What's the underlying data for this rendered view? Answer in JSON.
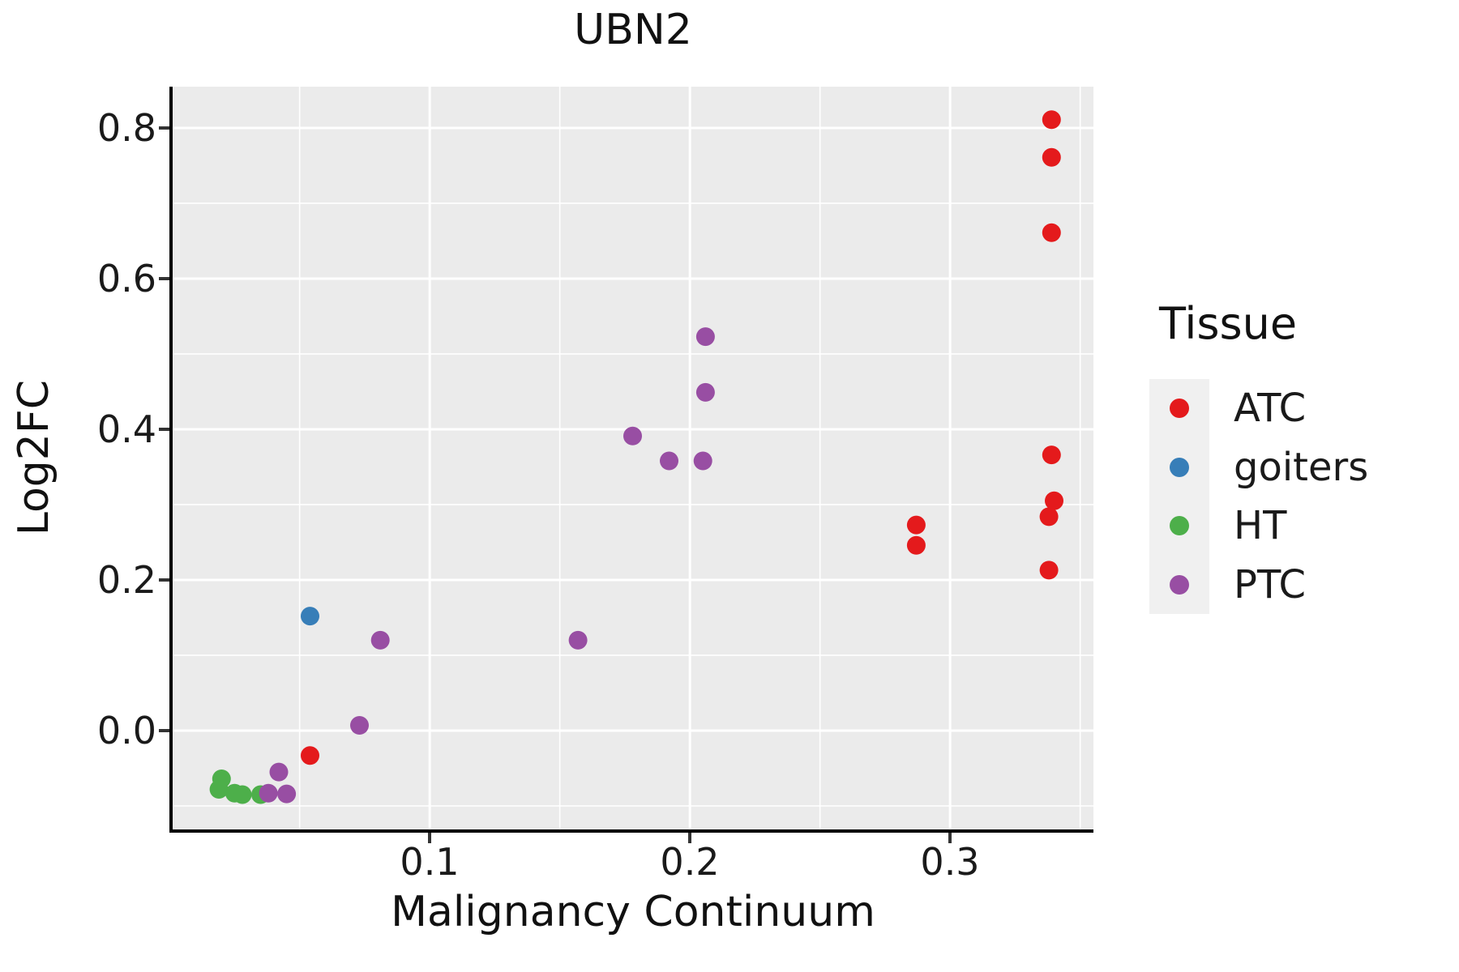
{
  "title": "UBN2",
  "style": {
    "panel_bg": "#EBEBEB",
    "grid_color": "#FFFFFF",
    "axis_color": "#000000",
    "tick_color": "#333333",
    "text_color": "#1a1a1a",
    "legend_key_bg": "#F0F0F0",
    "point_radius": 11.5,
    "legend_dot_radius": 12
  },
  "legend": {
    "title": "Tissue"
  },
  "chart_data": {
    "type": "scatter",
    "title": "UBN2",
    "xlabel": "Malignancy Continuum",
    "ylabel": "Log2FC",
    "grid": true,
    "legend_position": "right",
    "legend_title": "Tissue",
    "axes": {
      "x": {
        "domain": [
          0.0012,
          0.3551
        ],
        "major_ticks": [
          0.1,
          0.2,
          0.3
        ],
        "major_tick_labels": [
          "0.1",
          "0.2",
          "0.3"
        ],
        "minor_ticks": [
          0.05,
          0.15,
          0.25,
          0.35
        ]
      },
      "y": {
        "domain": [
          -0.1312,
          0.8548
        ],
        "major_ticks": [
          0.0,
          0.2,
          0.4,
          0.6,
          0.8
        ],
        "major_tick_labels": [
          "0.0",
          "0.2",
          "0.4",
          "0.6",
          "0.8"
        ],
        "minor_ticks": [
          -0.1,
          0.1,
          0.3,
          0.5,
          0.7
        ]
      }
    },
    "series": [
      {
        "name": "ATC",
        "color": "#E41A1C",
        "points": [
          [
            0.339,
            0.811
          ],
          [
            0.339,
            0.761
          ],
          [
            0.339,
            0.661
          ],
          [
            0.339,
            0.366
          ],
          [
            0.34,
            0.305
          ],
          [
            0.338,
            0.284
          ],
          [
            0.338,
            0.213
          ],
          [
            0.287,
            0.273
          ],
          [
            0.287,
            0.246
          ],
          [
            0.054,
            -0.033
          ]
        ]
      },
      {
        "name": "goiters",
        "color": "#377EB8",
        "points": [
          [
            0.054,
            0.152
          ]
        ]
      },
      {
        "name": "HT",
        "color": "#4DAF4A",
        "points": [
          [
            0.02,
            -0.064
          ],
          [
            0.019,
            -0.078
          ],
          [
            0.025,
            -0.083
          ],
          [
            0.028,
            -0.085
          ],
          [
            0.035,
            -0.085
          ]
        ]
      },
      {
        "name": "PTC",
        "color": "#984EA3",
        "points": [
          [
            0.206,
            0.523
          ],
          [
            0.206,
            0.449
          ],
          [
            0.178,
            0.391
          ],
          [
            0.192,
            0.358
          ],
          [
            0.205,
            0.358
          ],
          [
            0.081,
            0.12
          ],
          [
            0.157,
            0.12
          ],
          [
            0.073,
            0.007
          ],
          [
            0.042,
            -0.055
          ],
          [
            0.038,
            -0.083
          ],
          [
            0.045,
            -0.084
          ]
        ]
      }
    ]
  }
}
